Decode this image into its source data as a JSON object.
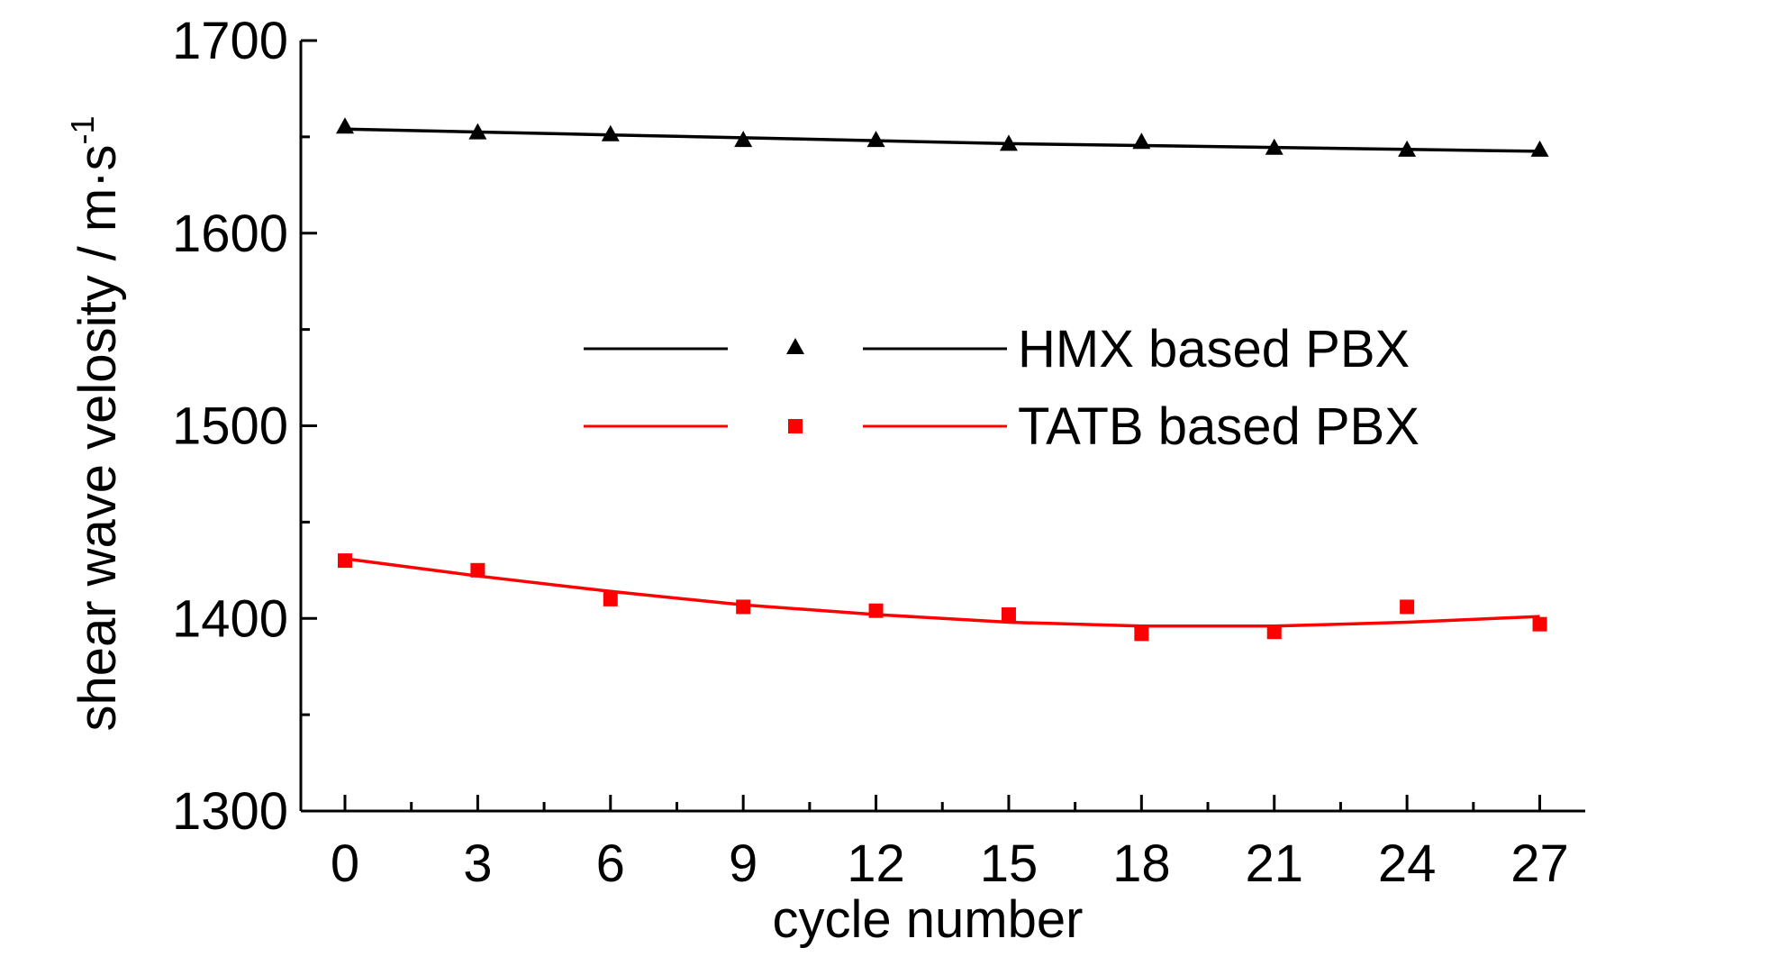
{
  "chart_data": {
    "type": "scatter",
    "xlabel": "cycle number",
    "ylabel": "shear wave velosity / m·s",
    "ylabel_superscript": "-1",
    "xlim": [
      -1,
      29
    ],
    "ylim": [
      1300,
      1700
    ],
    "x_ticks": [
      "0",
      "3",
      "6",
      "9",
      "12",
      "15",
      "18",
      "21",
      "24",
      "27"
    ],
    "y_ticks": [
      "1300",
      "1400",
      "1500",
      "1600",
      "1700"
    ],
    "legend_position": "center",
    "series": [
      {
        "name": "HMX based PBX",
        "marker": "triangle",
        "color": "#000000",
        "x": [
          0,
          3,
          6,
          9,
          12,
          15,
          18,
          21,
          24,
          27
        ],
        "y": [
          1655,
          1652,
          1651,
          1648,
          1648,
          1646,
          1647,
          1644,
          1643,
          1643
        ],
        "fit": [
          1654,
          1652.5,
          1651,
          1649.5,
          1648,
          1646.5,
          1645.5,
          1644.5,
          1643.5,
          1642.5
        ]
      },
      {
        "name": "TATB based PBX",
        "marker": "square",
        "color": "#ff0000",
        "x": [
          0,
          3,
          6,
          9,
          12,
          15,
          18,
          21,
          24,
          27
        ],
        "y": [
          1430,
          1425,
          1410,
          1406,
          1404,
          1402,
          1392,
          1393,
          1406,
          1397
        ],
        "fit": [
          1431,
          1422,
          1414,
          1407,
          1402,
          1398,
          1396,
          1396,
          1398,
          1401
        ]
      }
    ]
  }
}
